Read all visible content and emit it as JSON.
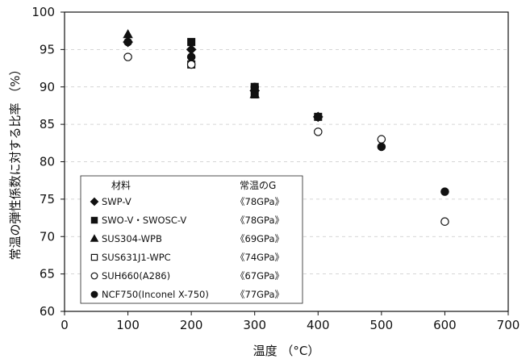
{
  "chart_data": {
    "type": "scatter",
    "xlabel": "温度 （°C）",
    "ylabel": "常温の弾性係数に対する比率 （%）",
    "xlim": [
      0,
      700
    ],
    "ylim": [
      60,
      100
    ],
    "x_ticks": [
      0,
      100,
      200,
      300,
      400,
      500,
      600,
      700
    ],
    "y_ticks": [
      60,
      65,
      70,
      75,
      80,
      85,
      90,
      95,
      100
    ],
    "grid": "dashed-horizontal",
    "legend": {
      "placement": "bottom-left",
      "header_left": "材料",
      "header_right": "常温のG"
    },
    "series": [
      {
        "name": "SWP-V",
        "modulus": "《78GPa》",
        "marker": "diamond-filled",
        "x": [
          100,
          200,
          300,
          400
        ],
        "y": [
          96.0,
          95.0,
          89.5,
          86.0
        ]
      },
      {
        "name": "SWO-V・SWOSC-V",
        "modulus": "《78GPa》",
        "marker": "square-filled",
        "x": [
          200,
          300
        ],
        "y": [
          96.0,
          89.0
        ]
      },
      {
        "name": "SUS304-WPB",
        "modulus": "《69GPa》",
        "marker": "triangle-filled",
        "x": [
          100,
          300
        ],
        "y": [
          97.0,
          89.0
        ]
      },
      {
        "name": "SUS631J1-WPC",
        "modulus": "《74GPa》",
        "marker": "square-open",
        "x": [
          200,
          300,
          400
        ],
        "y": [
          93.0,
          90.0,
          86.0
        ]
      },
      {
        "name": "SUH660(A286)",
        "modulus": "《67GPa》",
        "marker": "circle-open",
        "x": [
          100,
          200,
          400,
          500,
          600
        ],
        "y": [
          94.0,
          93.0,
          84.0,
          83.0,
          72.0
        ]
      },
      {
        "name": "NCF750(Inconel X-750)",
        "modulus": "《77GPa》",
        "marker": "circle-filled",
        "x": [
          100,
          200,
          300,
          400,
          500,
          600
        ],
        "y": [
          96.0,
          94.0,
          90.0,
          86.0,
          82.0,
          76.0
        ]
      }
    ]
  }
}
